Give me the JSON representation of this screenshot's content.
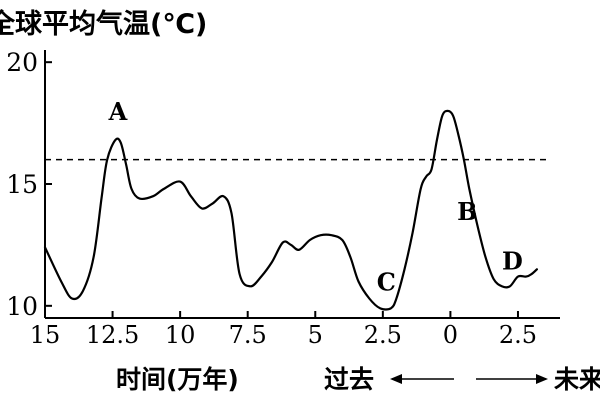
{
  "chart_data": {
    "type": "line",
    "title": "",
    "ylabel": "全球平均气温(℃)",
    "xlabel": "时间(万年)",
    "direction_past": "过去",
    "direction_future": "未来",
    "x_ticks": [
      "15",
      "12.5",
      "10",
      "7.5",
      "5",
      "2.5",
      "0",
      "2.5"
    ],
    "x_tick_values": [
      -15,
      -12.5,
      -10,
      -7.5,
      -5,
      -2.5,
      0,
      2.5
    ],
    "y_ticks": [
      10,
      15,
      20
    ],
    "xlim": [
      -15,
      3.5
    ],
    "ylim": [
      9.5,
      20.5
    ],
    "reference_line": {
      "y": 16,
      "style": "dashed"
    },
    "series": [
      {
        "x": [
          -15,
          -14.4,
          -14,
          -13.6,
          -13.2,
          -12.9,
          -12.7,
          -12.4,
          -12.2,
          -12.0,
          -11.8,
          -11.5,
          -11.0,
          -10.6,
          -10.0,
          -9.6,
          -9.2,
          -8.8,
          -8.4,
          -8.1,
          -7.8,
          -7.4,
          -7.0,
          -6.6,
          -6.2,
          -5.9,
          -5.6,
          -5.2,
          -4.8,
          -4.4,
          -4.0,
          -3.7,
          -3.4,
          -3.0,
          -2.6,
          -2.2,
          -2.0,
          -1.7,
          -1.4,
          -1.1,
          -0.9,
          -0.7,
          -0.5,
          -0.3,
          -0.1,
          0.1,
          0.3,
          0.5,
          0.7,
          1.0,
          1.3,
          1.6,
          1.9,
          2.2,
          2.5,
          2.8,
          3.0,
          3.2
        ],
        "y": [
          12.4,
          11.0,
          10.3,
          10.6,
          12.0,
          14.5,
          16.0,
          16.8,
          16.7,
          15.8,
          14.8,
          14.4,
          14.5,
          14.8,
          15.1,
          14.5,
          14.0,
          14.2,
          14.5,
          13.8,
          11.3,
          10.8,
          11.2,
          11.8,
          12.6,
          12.5,
          12.3,
          12.7,
          12.9,
          12.9,
          12.7,
          12.0,
          11.0,
          10.3,
          9.9,
          9.9,
          10.3,
          11.5,
          13.0,
          14.8,
          15.3,
          15.6,
          16.8,
          17.8,
          18.0,
          17.8,
          17.0,
          16.0,
          14.8,
          13.3,
          12.0,
          11.1,
          10.8,
          10.8,
          11.2,
          11.2,
          11.3,
          11.5
        ]
      }
    ],
    "annotations": [
      {
        "label": "A",
        "x": -12.3,
        "y": 16.8
      },
      {
        "label": "B",
        "x": 0.4,
        "y": 15.0
      },
      {
        "label": "C",
        "x": -2.3,
        "y": 9.9
      },
      {
        "label": "D",
        "x": 2.0,
        "y": 11.0
      }
    ]
  }
}
